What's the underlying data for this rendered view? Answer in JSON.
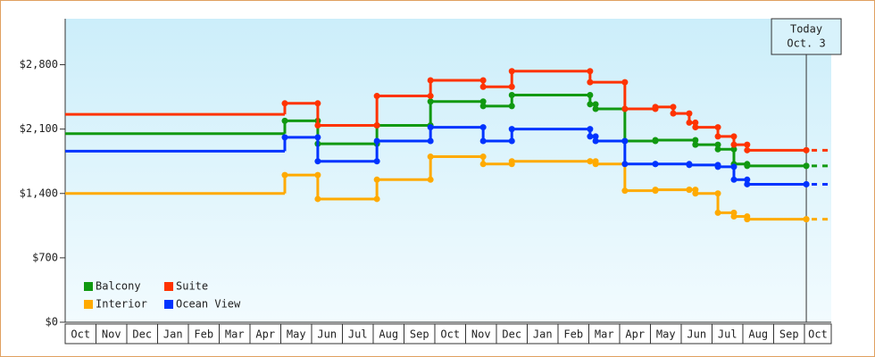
{
  "chart_data": {
    "type": "step",
    "categories": [
      "Oct",
      "Nov",
      "Dec",
      "Jan",
      "Feb",
      "Mar",
      "Apr",
      "May",
      "Jun",
      "Jul",
      "Aug",
      "Sep",
      "Oct",
      "Nov",
      "Dec",
      "Jan",
      "Feb",
      "Mar",
      "Apr",
      "May",
      "Jun",
      "Jul",
      "Aug",
      "Sep",
      "Oct"
    ],
    "xlim": [
      0,
      24.87
    ],
    "ylim": [
      0,
      3300
    ],
    "yticks": [
      {
        "value": 0,
        "label": "$0"
      },
      {
        "value": 700,
        "label": "$700"
      },
      {
        "value": 1400,
        "label": "$1,400"
      },
      {
        "value": 2100,
        "label": "$2,100"
      },
      {
        "value": 2800,
        "label": "$2,800"
      }
    ],
    "annotation": {
      "x": 24.06,
      "lines": [
        "Today",
        "Oct. 3"
      ]
    },
    "series": [
      {
        "name": "Balcony",
        "color": "#119911",
        "x": [
          0,
          7.13,
          8.2,
          10.12,
          11.86,
          13.57,
          14.5,
          17.04,
          17.22,
          18.17,
          19.16,
          20.46,
          21.19,
          21.71,
          22.14,
          24.06
        ],
        "values": [
          2050,
          2190,
          1940,
          2140,
          2400,
          2350,
          2470,
          2370,
          2320,
          1970,
          1980,
          1930,
          1880,
          1720,
          1700,
          1700
        ]
      },
      {
        "name": "Suite",
        "color": "#ff3300",
        "x": [
          0,
          7.13,
          8.2,
          10.12,
          11.86,
          13.57,
          14.5,
          17.04,
          18.17,
          19.16,
          19.74,
          20.26,
          20.46,
          21.19,
          21.71,
          22.14,
          24.06
        ],
        "values": [
          2260,
          2380,
          2140,
          2460,
          2630,
          2560,
          2730,
          2610,
          2320,
          2340,
          2270,
          2170,
          2120,
          2020,
          1930,
          1870,
          1870
        ]
      },
      {
        "name": "Interior",
        "color": "#ffaa00",
        "x": [
          0,
          7.13,
          8.2,
          10.12,
          11.86,
          13.57,
          14.5,
          17.04,
          17.22,
          18.17,
          19.16,
          20.26,
          20.46,
          21.19,
          21.71,
          22.14,
          24.06
        ],
        "values": [
          1400,
          1600,
          1340,
          1550,
          1800,
          1720,
          1750,
          1750,
          1720,
          1430,
          1440,
          1440,
          1400,
          1190,
          1150,
          1120,
          1120
        ]
      },
      {
        "name": "Ocean View",
        "color": "#0033ff",
        "x": [
          0,
          7.13,
          8.2,
          10.12,
          11.86,
          13.57,
          14.5,
          17.04,
          17.22,
          18.17,
          19.16,
          20.26,
          21.19,
          21.71,
          22.14,
          24.06
        ],
        "values": [
          1860,
          2010,
          1750,
          1970,
          2120,
          1970,
          2100,
          2020,
          1970,
          1720,
          1720,
          1710,
          1690,
          1550,
          1500,
          1500
        ]
      }
    ]
  }
}
